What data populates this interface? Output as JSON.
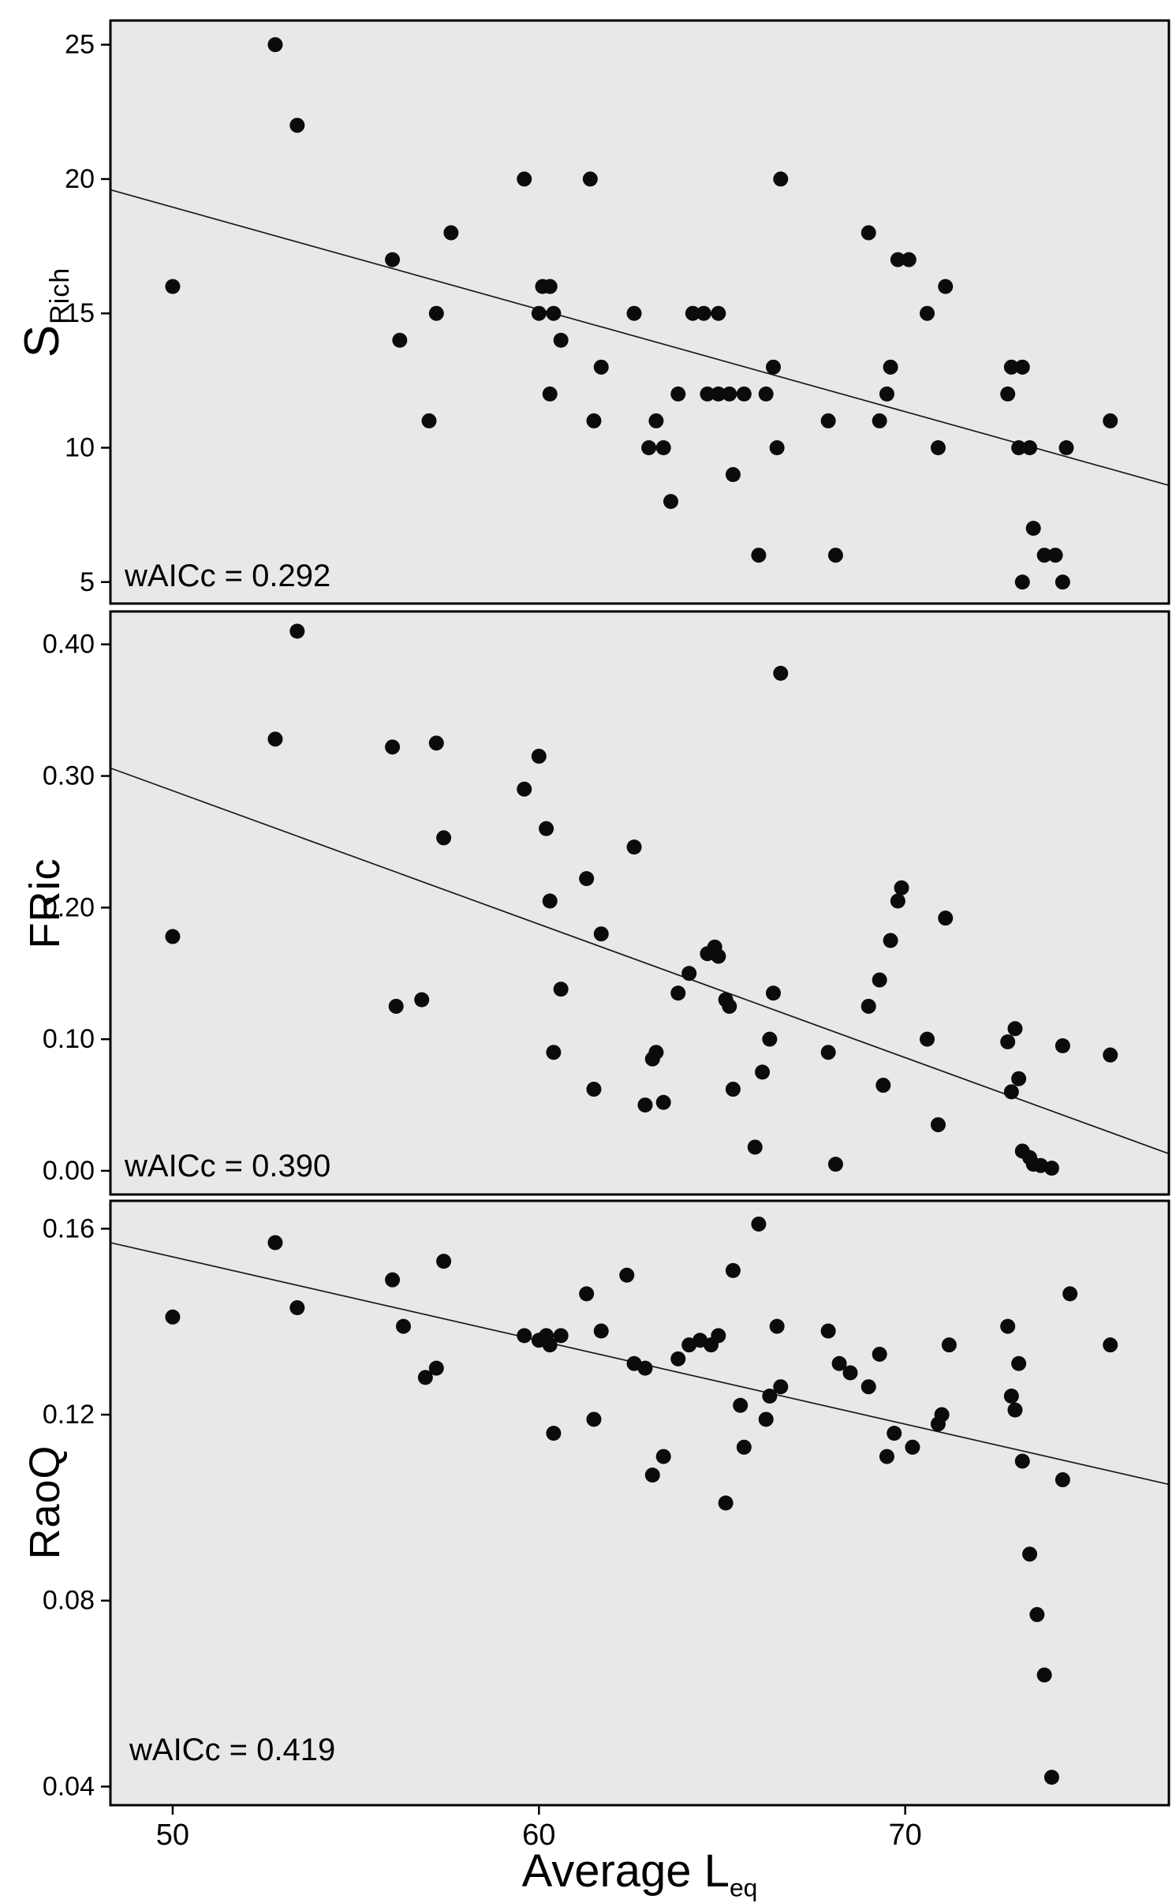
{
  "figure": {
    "xaxis": {
      "label_main": "Average L",
      "label_sub": "eq",
      "tick_values": [
        50,
        60,
        70
      ],
      "tick_labels": [
        "50",
        "60",
        "70"
      ]
    },
    "colors": {
      "panel_background": "#e8e8e8",
      "point": "#0b0b0b",
      "border": "#000000",
      "trend_line": "#1a1a1a"
    }
  },
  "chart_data": [
    {
      "type": "scatter",
      "ylabel_main": "S",
      "ylabel_sub": "Rich",
      "annotation": "wAICc = 0.292",
      "xlim": [
        48.3,
        77.2
      ],
      "ylim": [
        4.2,
        25.9
      ],
      "ytick_values": [
        5,
        10,
        15,
        20,
        25
      ],
      "ytick_labels": [
        "5",
        "10",
        "15",
        "20",
        "25"
      ],
      "trend": {
        "x": [
          48.3,
          77.2
        ],
        "y": [
          19.6,
          8.6
        ]
      },
      "points": [
        [
          50,
          16
        ],
        [
          52.8,
          25
        ],
        [
          53.4,
          22
        ],
        [
          56,
          17
        ],
        [
          56.2,
          14
        ],
        [
          57,
          11
        ],
        [
          57.2,
          15
        ],
        [
          57.6,
          18
        ],
        [
          59.6,
          20
        ],
        [
          60,
          15
        ],
        [
          60.1,
          16
        ],
        [
          60.3,
          16
        ],
        [
          60.4,
          15
        ],
        [
          60.3,
          12
        ],
        [
          60.6,
          14
        ],
        [
          61.4,
          20
        ],
        [
          61.5,
          11
        ],
        [
          61.7,
          13
        ],
        [
          62.6,
          15
        ],
        [
          63,
          10
        ],
        [
          63.2,
          11
        ],
        [
          63.4,
          10
        ],
        [
          63.6,
          8
        ],
        [
          63.8,
          12
        ],
        [
          64.2,
          15
        ],
        [
          64.5,
          15
        ],
        [
          64.9,
          15
        ],
        [
          64.6,
          12
        ],
        [
          64.9,
          12
        ],
        [
          65.2,
          12
        ],
        [
          65.3,
          9
        ],
        [
          65.6,
          12
        ],
        [
          66,
          6
        ],
        [
          66.2,
          12
        ],
        [
          66.4,
          13
        ],
        [
          66.5,
          10
        ],
        [
          66.6,
          20
        ],
        [
          67.9,
          11
        ],
        [
          68.1,
          6
        ],
        [
          69,
          18
        ],
        [
          69.3,
          11
        ],
        [
          69.5,
          12
        ],
        [
          69.6,
          13
        ],
        [
          69.8,
          17
        ],
        [
          70.1,
          17
        ],
        [
          70.6,
          15
        ],
        [
          70.9,
          10
        ],
        [
          71.1,
          16
        ],
        [
          72.8,
          12
        ],
        [
          72.9,
          13
        ],
        [
          73.2,
          13
        ],
        [
          73.1,
          10
        ],
        [
          73.4,
          10
        ],
        [
          73.2,
          5
        ],
        [
          73.5,
          7
        ],
        [
          73.8,
          6
        ],
        [
          74.1,
          6
        ],
        [
          74.3,
          5
        ],
        [
          74.4,
          10
        ],
        [
          75.6,
          11
        ]
      ]
    },
    {
      "type": "scatter",
      "ylabel_main": "FRic",
      "ylabel_sub": "",
      "annotation": "wAICc = 0.390",
      "xlim": [
        48.3,
        77.2
      ],
      "ylim": [
        -0.018,
        0.425
      ],
      "ytick_values": [
        0.0,
        0.1,
        0.2,
        0.3,
        0.4
      ],
      "ytick_labels": [
        "0.00",
        "0.10",
        "0.20",
        "0.30",
        "0.40"
      ],
      "trend": {
        "x": [
          48.3,
          77.2
        ],
        "y": [
          0.306,
          0.013
        ]
      },
      "points": [
        [
          50,
          0.178
        ],
        [
          52.8,
          0.328
        ],
        [
          53.4,
          0.41
        ],
        [
          56,
          0.322
        ],
        [
          56.1,
          0.125
        ],
        [
          56.8,
          0.13
        ],
        [
          57.2,
          0.325
        ],
        [
          57.4,
          0.253
        ],
        [
          59.6,
          0.29
        ],
        [
          60,
          0.315
        ],
        [
          60.2,
          0.26
        ],
        [
          60.3,
          0.205
        ],
        [
          60.4,
          0.09
        ],
        [
          60.6,
          0.138
        ],
        [
          61.3,
          0.222
        ],
        [
          61.5,
          0.062
        ],
        [
          61.7,
          0.18
        ],
        [
          62.6,
          0.246
        ],
        [
          62.9,
          0.05
        ],
        [
          63.1,
          0.085
        ],
        [
          63.2,
          0.09
        ],
        [
          63.4,
          0.052
        ],
        [
          63.8,
          0.135
        ],
        [
          64.1,
          0.15
        ],
        [
          64.6,
          0.165
        ],
        [
          64.8,
          0.17
        ],
        [
          64.9,
          0.163
        ],
        [
          65.1,
          0.13
        ],
        [
          65.2,
          0.125
        ],
        [
          65.3,
          0.062
        ],
        [
          65.9,
          0.018
        ],
        [
          66.1,
          0.075
        ],
        [
          66.3,
          0.1
        ],
        [
          66.4,
          0.135
        ],
        [
          66.6,
          0.378
        ],
        [
          67.9,
          0.09
        ],
        [
          68.1,
          0.005
        ],
        [
          69,
          0.125
        ],
        [
          69.3,
          0.145
        ],
        [
          69.4,
          0.065
        ],
        [
          69.6,
          0.175
        ],
        [
          69.8,
          0.205
        ],
        [
          69.9,
          0.215
        ],
        [
          70.6,
          0.1
        ],
        [
          70.9,
          0.035
        ],
        [
          71.1,
          0.192
        ],
        [
          72.8,
          0.098
        ],
        [
          72.9,
          0.06
        ],
        [
          73.0,
          0.108
        ],
        [
          73.1,
          0.07
        ],
        [
          73.2,
          0.015
        ],
        [
          73.4,
          0.01
        ],
        [
          73.5,
          0.005
        ],
        [
          73.7,
          0.004
        ],
        [
          74.0,
          0.002
        ],
        [
          74.3,
          0.095
        ],
        [
          75.6,
          0.088
        ]
      ]
    },
    {
      "type": "scatter",
      "ylabel_main": "RaoQ",
      "ylabel_sub": "",
      "annotation": "wAICc = 0.419",
      "xlim": [
        48.3,
        77.2
      ],
      "ylim": [
        0.036,
        0.166
      ],
      "ytick_values": [
        0.04,
        0.08,
        0.12,
        0.16
      ],
      "ytick_labels": [
        "0.04",
        "0.08",
        "0.12",
        "0.16"
      ],
      "trend": {
        "x": [
          48.3,
          77.2
        ],
        "y": [
          0.157,
          0.105
        ]
      },
      "points": [
        [
          50,
          0.141
        ],
        [
          52.8,
          0.157
        ],
        [
          53.4,
          0.143
        ],
        [
          56,
          0.149
        ],
        [
          56.3,
          0.139
        ],
        [
          56.9,
          0.128
        ],
        [
          57.2,
          0.13
        ],
        [
          57.4,
          0.153
        ],
        [
          59.6,
          0.137
        ],
        [
          60,
          0.136
        ],
        [
          60.2,
          0.137
        ],
        [
          60.3,
          0.135
        ],
        [
          60.4,
          0.116
        ],
        [
          60.6,
          0.137
        ],
        [
          61.3,
          0.146
        ],
        [
          61.5,
          0.119
        ],
        [
          61.7,
          0.138
        ],
        [
          62.4,
          0.15
        ],
        [
          62.6,
          0.131
        ],
        [
          62.9,
          0.13
        ],
        [
          63.1,
          0.107
        ],
        [
          63.4,
          0.111
        ],
        [
          63.8,
          0.132
        ],
        [
          64.1,
          0.135
        ],
        [
          64.4,
          0.136
        ],
        [
          64.7,
          0.135
        ],
        [
          64.9,
          0.137
        ],
        [
          65.1,
          0.101
        ],
        [
          65.3,
          0.151
        ],
        [
          65.5,
          0.122
        ],
        [
          65.6,
          0.113
        ],
        [
          66,
          0.161
        ],
        [
          66.2,
          0.119
        ],
        [
          66.3,
          0.124
        ],
        [
          66.5,
          0.139
        ],
        [
          66.6,
          0.126
        ],
        [
          67.9,
          0.138
        ],
        [
          68.2,
          0.131
        ],
        [
          68.5,
          0.129
        ],
        [
          69,
          0.126
        ],
        [
          69.3,
          0.133
        ],
        [
          69.5,
          0.111
        ],
        [
          69.7,
          0.116
        ],
        [
          70.2,
          0.113
        ],
        [
          70.9,
          0.118
        ],
        [
          71.0,
          0.12
        ],
        [
          71.2,
          0.135
        ],
        [
          72.8,
          0.139
        ],
        [
          72.9,
          0.124
        ],
        [
          73.0,
          0.121
        ],
        [
          73.1,
          0.131
        ],
        [
          73.2,
          0.11
        ],
        [
          73.4,
          0.09
        ],
        [
          73.6,
          0.077
        ],
        [
          73.8,
          0.064
        ],
        [
          74.0,
          0.042
        ],
        [
          74.3,
          0.106
        ],
        [
          74.5,
          0.146
        ],
        [
          75.6,
          0.135
        ]
      ]
    }
  ]
}
